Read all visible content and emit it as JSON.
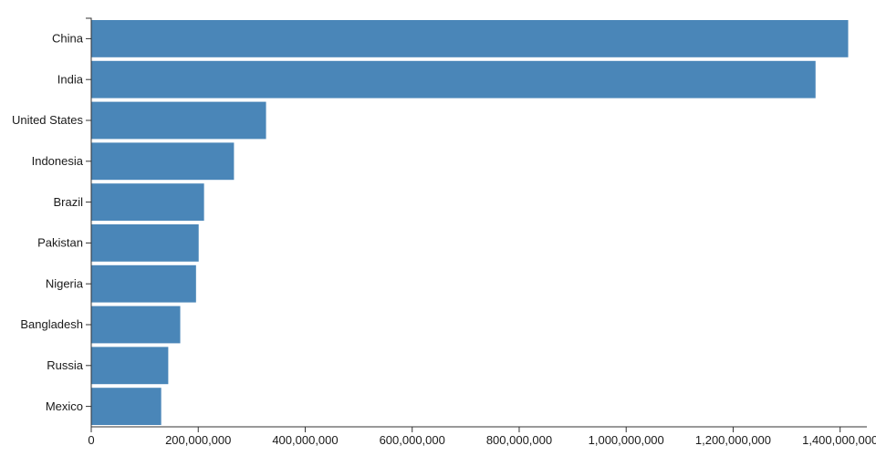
{
  "chart_data": {
    "type": "bar",
    "orientation": "horizontal",
    "title": "",
    "xlabel": "",
    "ylabel": "",
    "categories": [
      "China",
      "India",
      "United States",
      "Indonesia",
      "Brazil",
      "Pakistan",
      "Nigeria",
      "Bangladesh",
      "Russia",
      "Mexico"
    ],
    "values": [
      1415045928,
      1354051854,
      326766748,
      266794980,
      210867954,
      200813818,
      195875237,
      166368149,
      143964709,
      130759074
    ],
    "xlim": [
      0,
      1450000000
    ],
    "x_ticks": [
      0,
      200000000,
      400000000,
      600000000,
      800000000,
      1000000000,
      1200000000,
      1400000000
    ],
    "x_tick_labels": [
      "0",
      "200,000,000",
      "400,000,000",
      "600,000,000",
      "800,000,000",
      "1,000,000,000",
      "1,200,000,000",
      "1,400,000,000"
    ],
    "bar_color": "#4a86b8",
    "axis_color": "#333333",
    "grid": false,
    "legend": false
  }
}
